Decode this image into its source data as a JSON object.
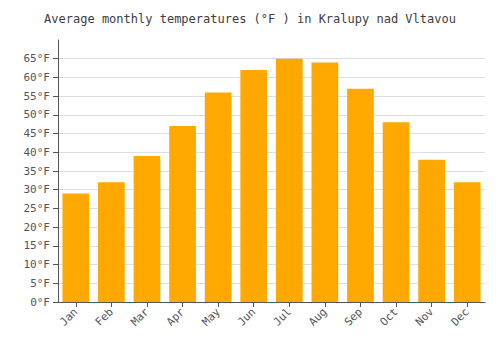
{
  "chart_data": {
    "type": "bar",
    "title": "Average monthly temperatures (°F ) in Kralupy nad Vltavou",
    "categories": [
      "Jan",
      "Feb",
      "Mar",
      "Apr",
      "May",
      "Jun",
      "Jul",
      "Aug",
      "Sep",
      "Oct",
      "Nov",
      "Dec"
    ],
    "values": [
      29,
      32,
      39,
      47,
      56,
      62,
      65,
      64,
      57,
      48,
      38,
      32
    ],
    "color": "#FFA800",
    "ylim": [
      0,
      70
    ],
    "yticks": [
      {
        "value": 0,
        "label": "0°F"
      },
      {
        "value": 5,
        "label": "5°F"
      },
      {
        "value": 10,
        "label": "10°F"
      },
      {
        "value": 15,
        "label": "15°F"
      },
      {
        "value": 20,
        "label": "20°F"
      },
      {
        "value": 25,
        "label": "25°F"
      },
      {
        "value": 30,
        "label": "30°F"
      },
      {
        "value": 35,
        "label": "35°F"
      },
      {
        "value": 40,
        "label": "40°F"
      },
      {
        "value": 45,
        "label": "45°F"
      },
      {
        "value": 50,
        "label": "50°F"
      },
      {
        "value": 55,
        "label": "55°F"
      },
      {
        "value": 60,
        "label": "60°F"
      },
      {
        "value": 65,
        "label": "65°F"
      }
    ],
    "grid": true
  }
}
